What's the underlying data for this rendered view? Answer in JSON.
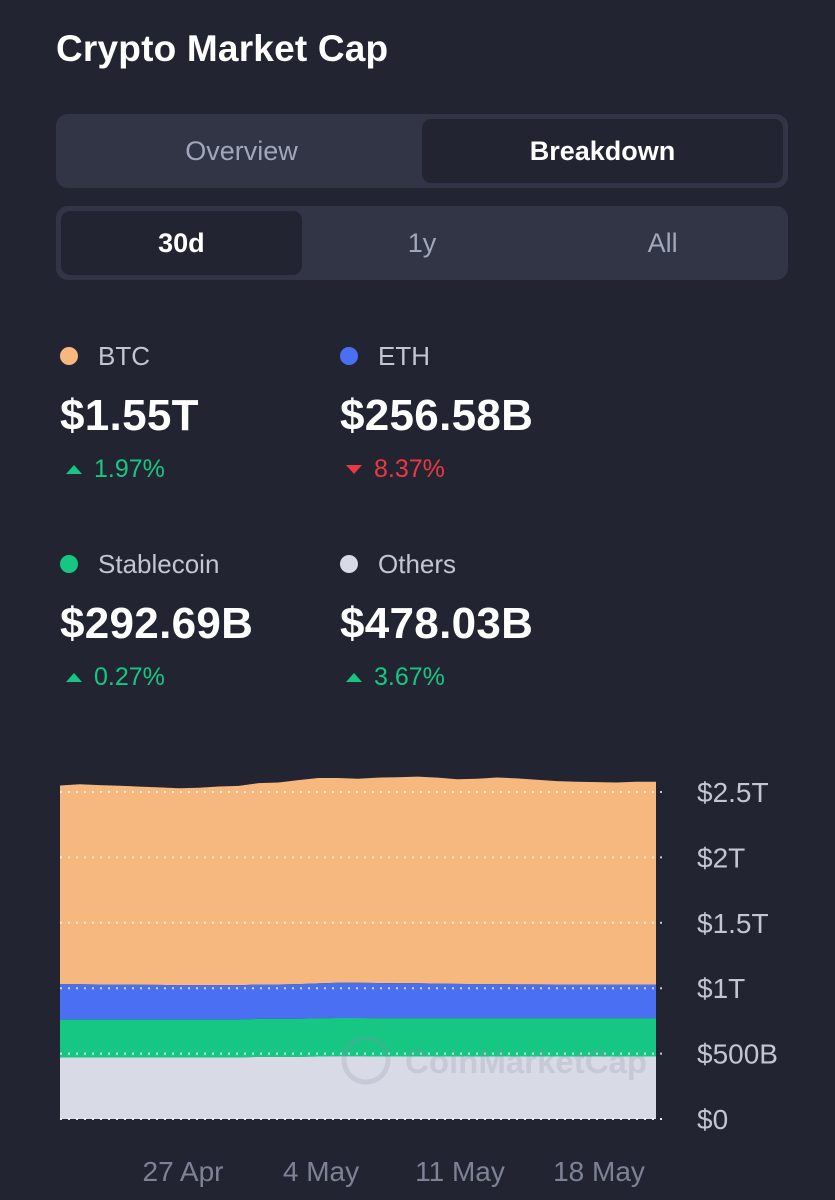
{
  "title": "Crypto Market Cap",
  "view_tabs": [
    {
      "label": "Overview",
      "active": false
    },
    {
      "label": "Breakdown",
      "active": true
    }
  ],
  "range_tabs": [
    {
      "label": "30d",
      "active": true
    },
    {
      "label": "1y",
      "active": false
    },
    {
      "label": "All",
      "active": false
    }
  ],
  "stats": [
    {
      "name": "BTC",
      "value": "$1.55T",
      "change": "1.97%",
      "direction": "up",
      "color": "#f6b87e"
    },
    {
      "name": "ETH",
      "value": "$256.58B",
      "change": "8.37%",
      "direction": "down",
      "color": "#4a6ff2"
    },
    {
      "name": "Stablecoin",
      "value": "$292.69B",
      "change": "0.27%",
      "direction": "up",
      "color": "#16c784"
    },
    {
      "name": "Others",
      "value": "$478.03B",
      "change": "3.67%",
      "direction": "up",
      "color": "#d8dbe6"
    }
  ],
  "watermark": "CoinMarketCap",
  "colors": {
    "background": "#222531",
    "segment_bg": "#323546",
    "positive": "#16c784",
    "negative": "#ea3943",
    "btc": "#f6b87e",
    "eth": "#4a6ff2",
    "stablecoin": "#16c784",
    "others": "#d8dbe6"
  },
  "chart_data": {
    "type": "area",
    "stacked": true,
    "x_ticks": [
      "27 Apr",
      "4 May",
      "11 May",
      "18 May"
    ],
    "y_ticks": [
      "$0",
      "$500B",
      "$1T",
      "$1.5T",
      "$2T",
      "$2.5T"
    ],
    "y_tick_values": [
      0,
      500,
      1000,
      1500,
      2000,
      2500
    ],
    "ylim": [
      0,
      2750
    ],
    "y_unit": "USD billions",
    "grid": "dotted horizontal",
    "axis_position": "right",
    "series": [
      {
        "name": "Others",
        "color": "#d8dbe6",
        "values": [
          470,
          470,
          470,
          470,
          470,
          470,
          470,
          470,
          470,
          470,
          475,
          475,
          475,
          478,
          480,
          480,
          478,
          478,
          478,
          478,
          478,
          478,
          478,
          478,
          478,
          478,
          478,
          478,
          478,
          478,
          478
        ]
      },
      {
        "name": "Stablecoin",
        "color": "#16c784",
        "values": [
          290,
          290,
          290,
          290,
          290,
          290,
          290,
          290,
          290,
          290,
          290,
          290,
          291,
          291,
          292,
          292,
          292,
          292,
          292,
          292,
          293,
          293,
          293,
          293,
          293,
          293,
          293,
          293,
          293,
          293,
          293
        ]
      },
      {
        "name": "ETH",
        "color": "#4a6ff2",
        "values": [
          270,
          270,
          268,
          268,
          266,
          265,
          263,
          262,
          262,
          262,
          263,
          263,
          265,
          268,
          270,
          270,
          270,
          268,
          268,
          265,
          262,
          260,
          260,
          258,
          258,
          257,
          257,
          257,
          257,
          257,
          257
        ]
      },
      {
        "name": "BTC",
        "color": "#f6b87e",
        "values": [
          1520,
          1530,
          1525,
          1520,
          1515,
          1510,
          1505,
          1510,
          1520,
          1525,
          1540,
          1545,
          1560,
          1570,
          1565,
          1560,
          1570,
          1575,
          1580,
          1575,
          1565,
          1570,
          1580,
          1575,
          1565,
          1555,
          1550,
          1548,
          1545,
          1550,
          1550
        ]
      }
    ]
  }
}
